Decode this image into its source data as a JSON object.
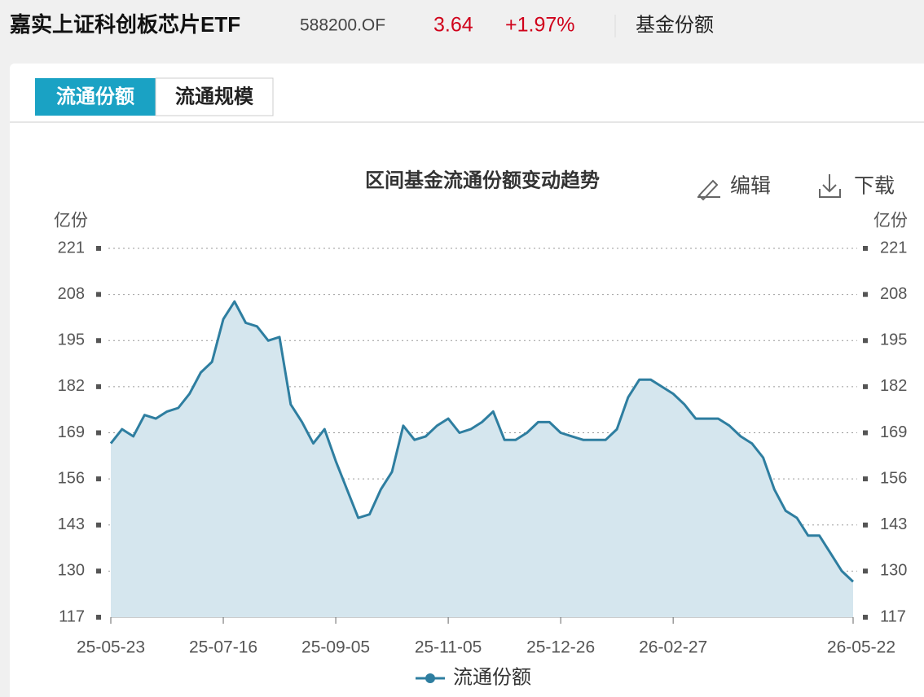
{
  "header": {
    "name": "嘉实上证科创板芯片ETF",
    "code": "588200.OF",
    "price": "3.64",
    "change": "+1.97%",
    "section": "基金份额"
  },
  "tabs": [
    "流通份额",
    "流通规模"
  ],
  "actions": [
    "编辑",
    "下载"
  ],
  "chart_data": {
    "type": "line",
    "title": "区间基金流通份额变动趋势",
    "ylabel": "亿份",
    "categories": [
      "25-05-23",
      null,
      null,
      null,
      null,
      null,
      null,
      null,
      null,
      null,
      "25-07-16",
      null,
      null,
      null,
      null,
      null,
      null,
      null,
      null,
      null,
      "25-09-05",
      null,
      null,
      null,
      null,
      null,
      null,
      null,
      null,
      null,
      "25-11-05",
      null,
      null,
      null,
      null,
      null,
      null,
      null,
      null,
      null,
      "25-12-26",
      null,
      null,
      null,
      null,
      null,
      null,
      null,
      null,
      null,
      "26-02-27",
      null,
      null,
      null,
      null,
      null,
      null,
      null,
      null,
      null,
      null,
      null,
      null,
      null,
      null,
      null,
      "26-05-22"
    ],
    "series": [
      {
        "name": "流通份额",
        "color": "#2e7ea0",
        "fill": "#d5e6ee",
        "values": [
          166,
          170,
          168,
          174,
          173,
          175,
          176,
          180,
          186,
          189,
          201,
          206,
          200,
          199,
          195,
          196,
          177,
          172,
          166,
          170,
          161,
          153,
          145,
          146,
          153,
          158,
          171,
          167,
          168,
          171,
          173,
          169,
          170,
          172,
          175,
          167,
          167,
          169,
          172,
          172,
          169,
          168,
          167,
          167,
          167,
          170,
          179,
          184,
          184,
          182,
          180,
          177,
          173,
          173,
          173,
          171,
          168,
          166,
          162,
          153,
          147,
          145,
          140,
          140,
          135,
          130,
          127
        ]
      }
    ],
    "ylim": [
      117,
      221
    ],
    "yticks": [
      117,
      130,
      143,
      156,
      169,
      182,
      195,
      208,
      221
    ],
    "grid": true
  }
}
